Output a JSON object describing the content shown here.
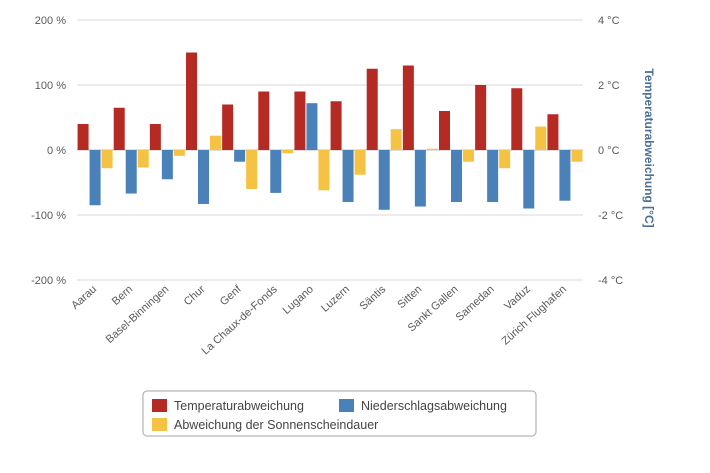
{
  "chart_data": {
    "type": "bar",
    "categories": [
      "Aarau",
      "Bern",
      "Basel-Binningen",
      "Chur",
      "Genf",
      "La Chaux-de-Fonds",
      "Lugano",
      "Luzern",
      "Säntis",
      "Sitten",
      "Sankt Gallen",
      "Samedan",
      "Vaduz",
      "Zürich Flughafen"
    ],
    "series": [
      {
        "name": "Temperaturabweichung",
        "axis": "right",
        "unit": "°C",
        "color": "#b52a23",
        "values": [
          0.8,
          1.3,
          0.8,
          3.0,
          1.4,
          1.8,
          1.8,
          1.5,
          2.5,
          2.6,
          1.2,
          2.0,
          1.9,
          1.1
        ]
      },
      {
        "name": "Niederschlagsabweichung",
        "axis": "left",
        "unit": "%",
        "color": "#4a81b8",
        "values": [
          -85,
          -67,
          -45,
          -83,
          -18,
          -66,
          72,
          -80,
          -92,
          -87,
          -80,
          -80,
          -90,
          -78
        ]
      },
      {
        "name": "Abweichung der Sonnenscheindauer",
        "axis": "left",
        "unit": "%",
        "color": "#f6c243",
        "values": [
          -28,
          -27,
          -9,
          22,
          -60,
          -5,
          -62,
          -38,
          32,
          2,
          -18,
          -28,
          36,
          -18
        ]
      }
    ],
    "y_left": {
      "min": -200,
      "max": 200,
      "step": 100,
      "tick_labels": [
        "-200 %",
        "-100 %",
        "0 %",
        "100 %",
        "200 %"
      ]
    },
    "y_right": {
      "min": -4,
      "max": 4,
      "step": 2,
      "tick_labels": [
        "-4 °C",
        "-2 °C",
        "0 °C",
        "2 °C",
        "4 °C"
      ],
      "title": "Temperaturabweichung [°C]",
      "title_color": "#4a6f97"
    },
    "grid": true,
    "legend_position": "bottom"
  },
  "legend": {
    "items": [
      {
        "label": "Temperaturabweichung",
        "color": "#b52a23"
      },
      {
        "label": "Niederschlagsabweichung",
        "color": "#4a81b8"
      },
      {
        "label": "Abweichung der Sonnenscheindauer",
        "color": "#f6c243"
      }
    ]
  }
}
